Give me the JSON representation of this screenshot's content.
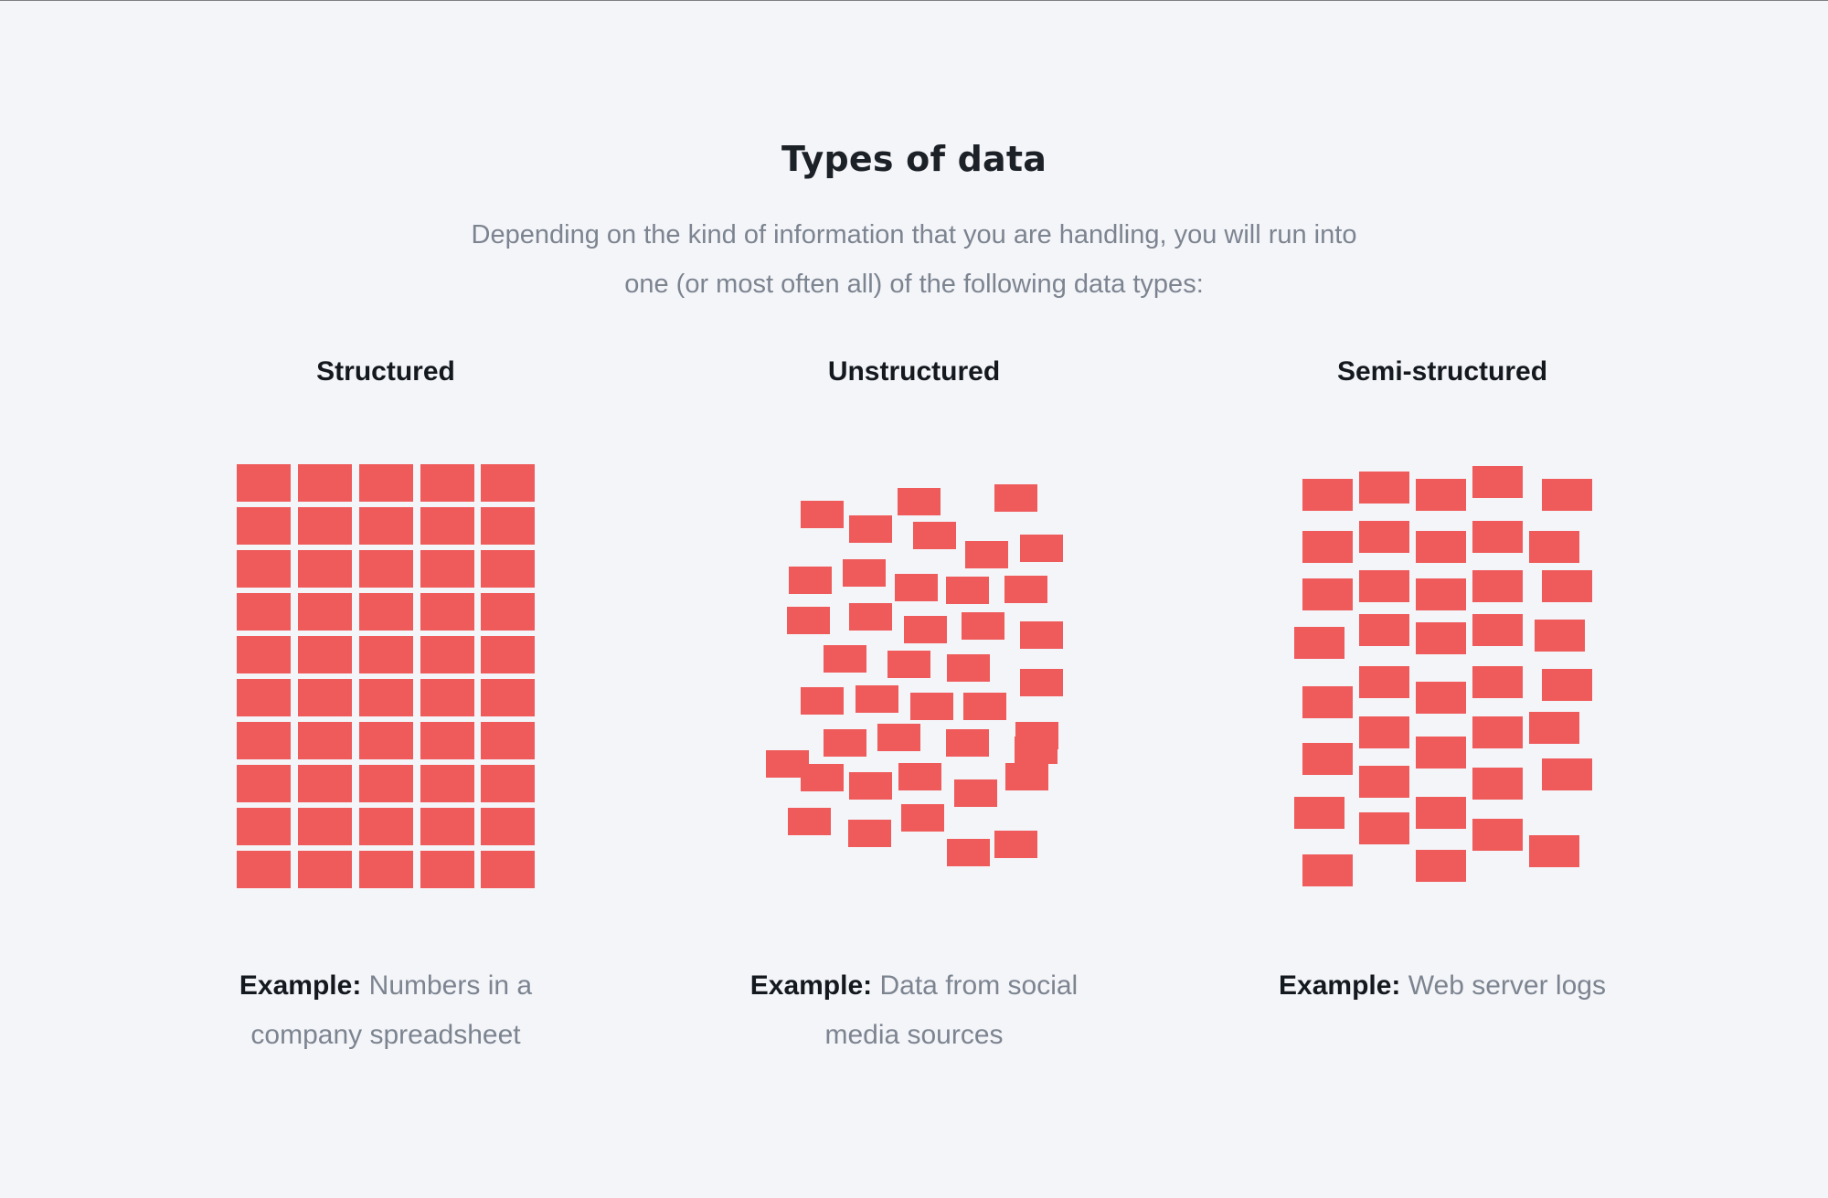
{
  "title": "Types of data",
  "subtitle": "Depending on the kind of information that you are handling, you will run into one (or most often all) of the following data types:",
  "colors": {
    "background": "#f4f5f9",
    "block": "#ef5a5a",
    "heading_text": "#14191f",
    "body_text": "#7c8490"
  },
  "types": [
    {
      "heading": "Structured",
      "example_label": "Example:",
      "example_text": "Numbers in a company spreadsheet"
    },
    {
      "heading": "Unstructured",
      "example_label": "Example:",
      "example_text": "Data from social media sources"
    },
    {
      "heading": "Semi-structured",
      "example_label": "Example:",
      "example_text": "Web server logs"
    }
  ]
}
